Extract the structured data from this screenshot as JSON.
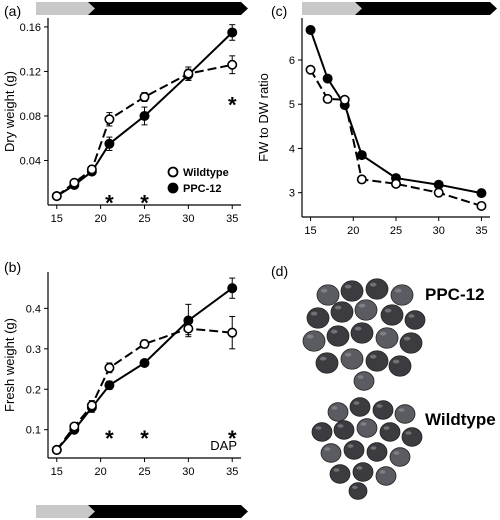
{
  "panels": {
    "a": "(a)",
    "b": "(b)",
    "c": "(c)",
    "d": "(d)"
  },
  "colors": {
    "bar_light": "#c8c8c8",
    "bar_dark": "#000000",
    "seed_dark": "#3c3c40",
    "seed_mid": "#5a5c62"
  },
  "photo": {
    "label_top": "PPC-12",
    "label_bottom": "Wildtype"
  },
  "chart_data": [
    {
      "id": "a",
      "type": "line",
      "ylabel": "Dry weight (g)",
      "xlabel": "",
      "x": [
        15,
        17,
        19,
        21,
        25,
        30,
        35
      ],
      "xticks": [
        15,
        20,
        25,
        30,
        35
      ],
      "yticks": [
        "0.04",
        "0.08",
        "0.12",
        "0.16"
      ],
      "ylim": [
        0.0,
        0.168
      ],
      "xlim": [
        14,
        36
      ],
      "series": [
        {
          "name": "Wildtype",
          "marker": "open",
          "dashed": true,
          "values": [
            0.008,
            0.02,
            0.032,
            0.077,
            0.097,
            0.118,
            0.126
          ],
          "errors": [
            0.002,
            0.002,
            0.003,
            0.006,
            0.004,
            0.006,
            0.008
          ]
        },
        {
          "name": "PPC-12",
          "marker": "filled",
          "dashed": false,
          "values": [
            0.008,
            0.018,
            0.03,
            0.055,
            0.08,
            0.117,
            0.155
          ],
          "errors": [
            0.002,
            0.002,
            0.003,
            0.006,
            0.008,
            0.005,
            0.007
          ]
        }
      ],
      "annotations": [
        {
          "text": "*",
          "x": 21,
          "y": 0.004
        },
        {
          "text": "*",
          "x": 25,
          "y": 0.004
        },
        {
          "text": "*",
          "x": 35,
          "y": 0.092
        }
      ],
      "legend": {
        "position": "bottom-center",
        "items": [
          "Wildtype",
          "PPC-12"
        ]
      }
    },
    {
      "id": "b",
      "type": "line",
      "ylabel": "Fresh weight (g)",
      "xlabel": "DAP",
      "x": [
        15,
        17,
        19,
        21,
        25,
        30,
        35
      ],
      "xticks": [
        15,
        20,
        25,
        30,
        35
      ],
      "yticks": [
        "0.1",
        "0.2",
        "0.3",
        "0.4"
      ],
      "ylim": [
        0.03,
        0.49
      ],
      "xlim": [
        14,
        36
      ],
      "series": [
        {
          "name": "Wildtype",
          "marker": "open",
          "dashed": true,
          "values": [
            0.05,
            0.108,
            0.16,
            0.253,
            0.312,
            0.35,
            0.34
          ],
          "errors": [
            0.003,
            0.008,
            0.012,
            0.012,
            0.01,
            0.015,
            0.04
          ]
        },
        {
          "name": "PPC-12",
          "marker": "filled",
          "dashed": false,
          "values": [
            0.05,
            0.1,
            0.155,
            0.21,
            0.265,
            0.37,
            0.45
          ],
          "errors": [
            0.003,
            0.008,
            0.012,
            0.01,
            0.008,
            0.04,
            0.025
          ]
        }
      ],
      "annotations": [
        {
          "text": "*",
          "x": 21,
          "y": 0.085
        },
        {
          "text": "*",
          "x": 25,
          "y": 0.085
        },
        {
          "text": "*",
          "x": 35,
          "y": 0.085
        }
      ]
    },
    {
      "id": "c",
      "type": "line",
      "ylabel": "FW to DW ratio",
      "xlabel": "",
      "x": [
        15,
        17,
        19,
        21,
        25,
        30,
        35
      ],
      "xticks": [
        15,
        20,
        25,
        30,
        35
      ],
      "yticks": [
        "3",
        "4",
        "5",
        "6"
      ],
      "ylim": [
        2.45,
        6.95
      ],
      "xlim": [
        14,
        36
      ],
      "series": [
        {
          "name": "Wildtype",
          "marker": "open",
          "dashed": true,
          "values": [
            5.78,
            5.12,
            5.1,
            3.3,
            3.2,
            3.0,
            2.7
          ]
        },
        {
          "name": "PPC-12",
          "marker": "filled",
          "dashed": false,
          "values": [
            6.68,
            5.58,
            4.98,
            3.85,
            3.33,
            3.18,
            2.99
          ]
        }
      ]
    }
  ]
}
